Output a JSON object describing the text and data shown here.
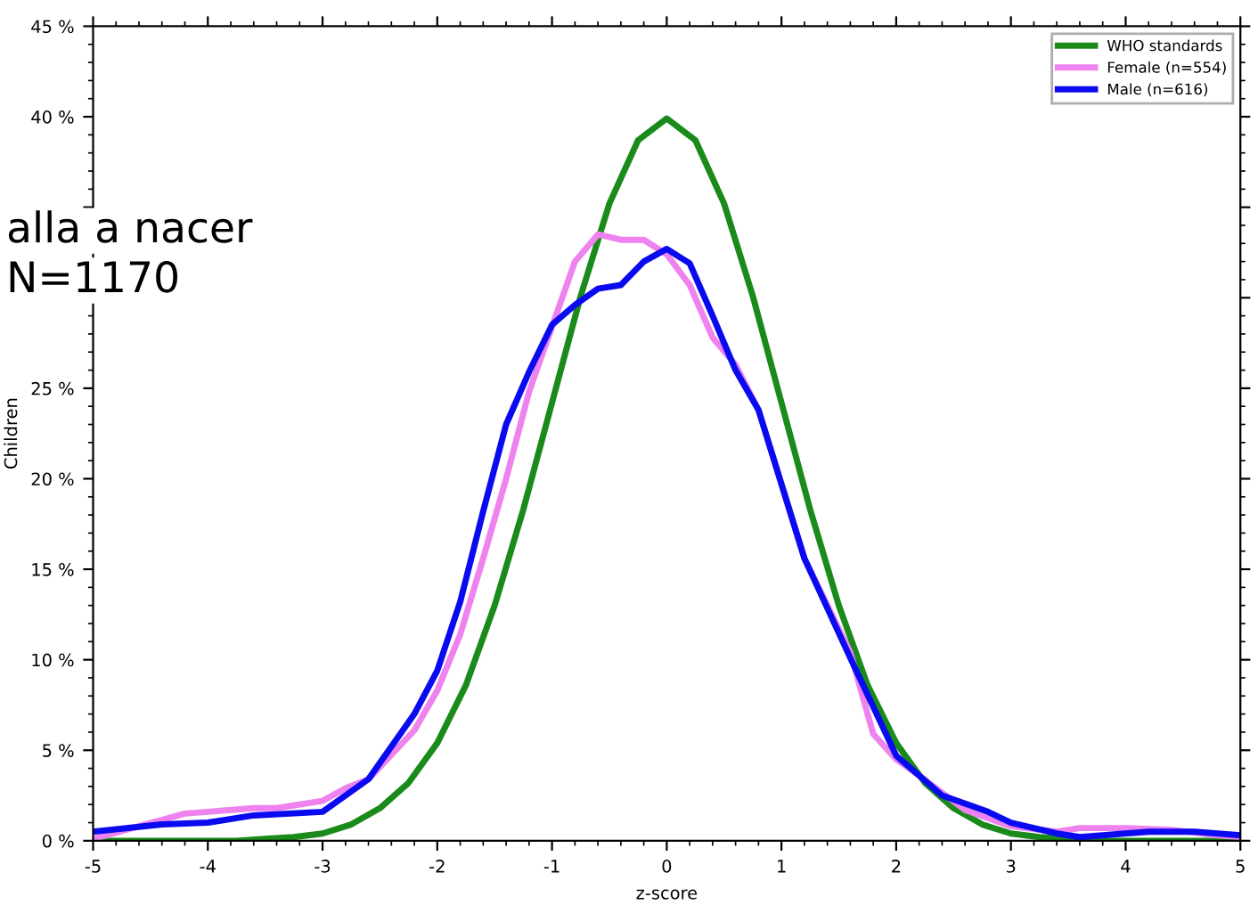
{
  "chart_data": {
    "type": "line",
    "xlabel": "z-score",
    "ylabel": "Children",
    "annotations": [
      "alla a nacer",
      "N=1170"
    ],
    "xlim": [
      -5,
      5
    ],
    "xticks": [
      -5,
      -4,
      -3,
      -2,
      -1,
      0,
      1,
      2,
      3,
      4,
      5
    ],
    "ylim": [
      0,
      45
    ],
    "yticks": [
      {
        "value": 0,
        "label": "0 %"
      },
      {
        "value": 5,
        "label": "5 %"
      },
      {
        "value": 10,
        "label": "10 %"
      },
      {
        "value": 15,
        "label": "15 %"
      },
      {
        "value": 20,
        "label": "20 %"
      },
      {
        "value": 25,
        "label": "25 %"
      },
      {
        "value": 30,
        "label": null
      },
      {
        "value": 35,
        "label": null
      },
      {
        "value": 40,
        "label": "40 %"
      },
      {
        "value": 45,
        "label": "45 %"
      }
    ],
    "grid": false,
    "legend": "top right",
    "marker": "none",
    "line_style": "solid",
    "series": [
      {
        "name": "WHO standards",
        "color": "#1a8a1a",
        "x": [
          -5,
          -4,
          -3.75,
          -3.5,
          -3.25,
          -3,
          -2.75,
          -2.5,
          -2.25,
          -2,
          -1.75,
          -1.5,
          -1.25,
          -1,
          -0.75,
          -0.5,
          -0.25,
          0,
          0.25,
          0.5,
          0.75,
          1,
          1.25,
          1.5,
          1.75,
          2,
          2.25,
          2.5,
          2.75,
          3,
          3.25,
          3.5,
          3.75,
          4,
          5
        ],
        "values": [
          0,
          0,
          0,
          0.1,
          0.2,
          0.4,
          0.9,
          1.8,
          3.2,
          5.4,
          8.6,
          13,
          18.3,
          24.2,
          30.1,
          35.2,
          38.7,
          39.9,
          38.7,
          35.2,
          30.1,
          24.2,
          18.3,
          13,
          8.6,
          5.4,
          3.2,
          1.8,
          0.9,
          0.4,
          0.2,
          0.1,
          0,
          0,
          0
        ]
      },
      {
        "name": "Female (n=554)",
        "color": "#ee82ee",
        "x": [
          -5,
          -4.2,
          -4,
          -3.6,
          -3.4,
          -3,
          -2.8,
          -2.6,
          -2.2,
          -2,
          -1.8,
          -1.6,
          -1.4,
          -1.2,
          -1,
          -0.8,
          -0.6,
          -0.4,
          -0.2,
          0,
          0.2,
          0.4,
          0.6,
          0.8,
          1.2,
          1.6,
          1.8,
          2,
          2.2,
          2.6,
          3,
          3.4,
          3.6,
          4,
          4.4,
          4.8,
          5
        ],
        "values": [
          0.1,
          1.5,
          1.6,
          1.8,
          1.8,
          2.2,
          2.9,
          3.4,
          6.1,
          8.3,
          11.4,
          15.6,
          20,
          24.8,
          28.4,
          32,
          33.5,
          33.2,
          33.2,
          32.4,
          30.7,
          27.8,
          26.3,
          23.8,
          15.6,
          10.4,
          5.9,
          4.5,
          3.6,
          1.7,
          0.8,
          0.5,
          0.7,
          0.7,
          0.6,
          0.3,
          0.2
        ]
      },
      {
        "name": "Male (n=616)",
        "color": "#0a0af0",
        "x": [
          -5,
          -4.4,
          -4,
          -3.6,
          -3,
          -2.6,
          -2.2,
          -2,
          -1.8,
          -1.6,
          -1.4,
          -1.2,
          -1,
          -0.8,
          -0.6,
          -0.4,
          -0.2,
          0,
          0.2,
          0.4,
          0.6,
          0.8,
          1.2,
          1.6,
          2,
          2.2,
          2.4,
          2.8,
          3,
          3.4,
          3.6,
          3.8,
          4.2,
          4.6,
          5
        ],
        "values": [
          0.5,
          0.9,
          1.0,
          1.4,
          1.6,
          3.4,
          7.0,
          9.4,
          13.2,
          18.2,
          23,
          25.9,
          28.5,
          29.6,
          30.5,
          30.7,
          32,
          32.7,
          31.9,
          29,
          26,
          23.8,
          15.6,
          10.1,
          4.7,
          3.6,
          2.5,
          1.6,
          1.0,
          0.4,
          0.2,
          0.3,
          0.5,
          0.5,
          0.3
        ]
      }
    ]
  }
}
